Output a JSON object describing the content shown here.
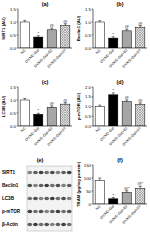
{
  "chart_data": [
    {
      "type": "bar",
      "title": "(a)",
      "y_label": "SIRT1 (AU)",
      "categories": [
        "NC",
        "OVX/D-Gal",
        "OVX/D-Gal+E2",
        "OVX/D-Gal+ST"
      ],
      "values": [
        1.0,
        0.42,
        0.7,
        0.86
      ],
      "errors": [
        0.06,
        0.05,
        0.06,
        0.07
      ],
      "annotations": [
        null,
        "*",
        "@",
        "@"
      ],
      "colors": [
        "#ffffff",
        "#000000",
        "#a6a6a6",
        "#e0e0e0"
      ],
      "ylim": [
        0,
        1.5
      ],
      "yticks": [
        {
          "value": 0,
          "label": "0.0"
        },
        {
          "value": 0.5,
          "label": "0.5"
        },
        {
          "value": 1,
          "label": "1.0"
        },
        {
          "value": 1.5,
          "label": "1.5"
        }
      ]
    },
    {
      "type": "bar",
      "title": "(b)",
      "y_label": "Beclin1 (AU)",
      "categories": [
        "NC",
        "OVX/D-Gal",
        "OVX/D-Gal+E2",
        "OVX/D-Gal+ST"
      ],
      "values": [
        1.0,
        0.38,
        0.66,
        0.8
      ],
      "errors": [
        0.05,
        0.05,
        0.06,
        0.06
      ],
      "annotations": [
        null,
        "*",
        "@",
        "@"
      ],
      "colors": [
        "#ffffff",
        "#000000",
        "#a6a6a6",
        "#e0e0e0"
      ],
      "ylim": [
        0,
        1.5
      ],
      "yticks": [
        {
          "value": 0,
          "label": "0.0"
        },
        {
          "value": 0.5,
          "label": "0.5"
        },
        {
          "value": 1,
          "label": "1.0"
        },
        {
          "value": 1.5,
          "label": "1.5"
        }
      ]
    },
    {
      "type": "bar",
      "title": "(c)",
      "y_label": "LC3B (AU)",
      "categories": [
        "NC",
        "OVX/D-Gal",
        "OVX/D-Gal+E2",
        "OVX/D-Gal+ST"
      ],
      "values": [
        1.0,
        0.45,
        0.72,
        0.84
      ],
      "errors": [
        0.06,
        0.04,
        0.05,
        0.06
      ],
      "annotations": [
        null,
        "*",
        "@",
        "@"
      ],
      "colors": [
        "#ffffff",
        "#000000",
        "#a6a6a6",
        "#e0e0e0"
      ],
      "ylim": [
        0,
        1.5
      ],
      "yticks": [
        {
          "value": 0,
          "label": "0.0"
        },
        {
          "value": 0.5,
          "label": "0.5"
        },
        {
          "value": 1,
          "label": "1.0"
        },
        {
          "value": 1.5,
          "label": "1.5"
        }
      ]
    },
    {
      "type": "bar",
      "title": "(d)",
      "y_label": "p-mTOR (AU)",
      "categories": [
        "NC",
        "OVX/D-Gal",
        "OVX/D-Gal+E2",
        "OVX/D-Gal+ST"
      ],
      "values": [
        1.0,
        1.6,
        1.25,
        1.1
      ],
      "errors": [
        0.07,
        0.1,
        0.08,
        0.08
      ],
      "annotations": [
        null,
        "*",
        "@",
        "@"
      ],
      "colors": [
        "#ffffff",
        "#000000",
        "#a6a6a6",
        "#e0e0e0"
      ],
      "ylim": [
        0,
        2
      ],
      "yticks": [
        {
          "value": 0,
          "label": "0.0"
        },
        {
          "value": 0.5,
          "label": "0.5"
        },
        {
          "value": 1,
          "label": "1.0"
        },
        {
          "value": 1.5,
          "label": "1.5"
        },
        {
          "value": 2,
          "label": "2.0"
        }
      ]
    },
    {
      "type": "bar",
      "title": "(f)",
      "y_label": "TRAM (pg/mg protein)",
      "categories": [
        "NC",
        "OVX/D-Gal",
        "OVX/D-Gal+E2",
        "OVX/D-Gal+ST"
      ],
      "values": [
        90,
        20,
        45,
        60
      ],
      "errors": [
        10,
        5,
        6,
        8
      ],
      "annotations": [
        null,
        "*",
        "@*",
        "@*"
      ],
      "colors": [
        "#ffffff",
        "#000000",
        "#a6a6a6",
        "#e0e0e0"
      ],
      "ylim": [
        0,
        150
      ],
      "yticks": [
        0,
        50,
        100,
        150
      ]
    }
  ],
  "blot": {
    "title": "(e)",
    "rows": [
      "SIRT1",
      "Beclin1",
      "LC3B",
      "p-mTOR",
      "β-Actin"
    ]
  }
}
